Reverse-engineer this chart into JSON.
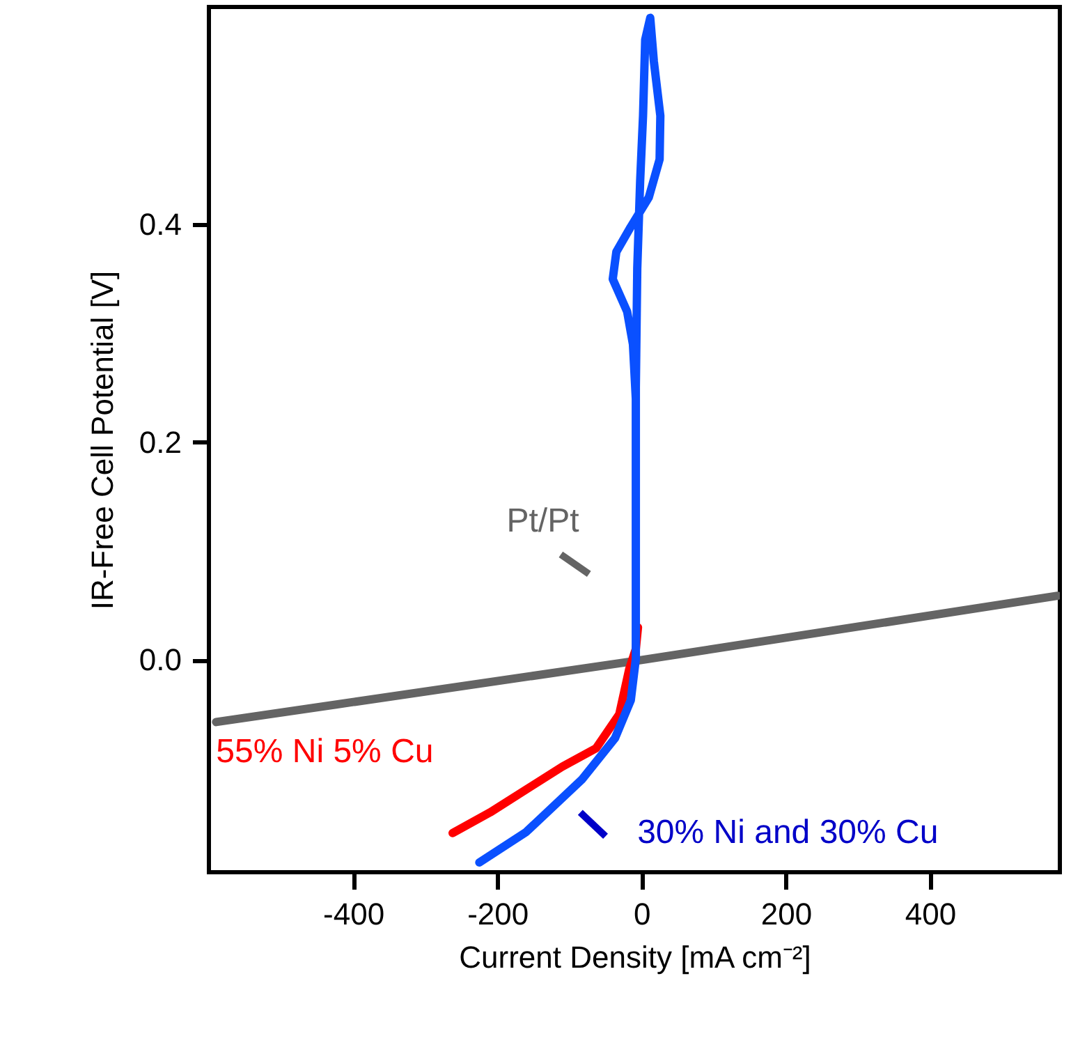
{
  "chart_data": {
    "type": "line",
    "xlabel": "Current Density [mA cm⁻²]",
    "ylabel": "IR-Free Cell Potential [V]",
    "xlim": [
      -600,
      580
    ],
    "ylim": [
      -0.195,
      0.6
    ],
    "xticks": [
      -400,
      -200,
      0,
      200,
      400
    ],
    "yticks": [
      {
        "value": 0,
        "label": "0.0"
      },
      {
        "value": 0.2,
        "label": "0.2"
      },
      {
        "value": 0.4,
        "label": "0.4"
      }
    ],
    "grid": false,
    "marker": "none",
    "line_style": "solid",
    "series": [
      {
        "name": "Pt/Pt",
        "color": "#646464",
        "x": [
          -590,
          0,
          577
        ],
        "values": [
          -0.057,
          0.0,
          0.059
        ]
      },
      {
        "name": "55% Ni 5% Cu",
        "color": "#ff0000",
        "x": [
          -262,
          -210,
          -160,
          -110,
          -63,
          -31,
          -17,
          -8,
          -5
        ],
        "values": [
          -0.159,
          -0.14,
          -0.119,
          -0.098,
          -0.081,
          -0.05,
          -0.008,
          0.01,
          0.03
        ]
      },
      {
        "name": "30% Ni and 30% Cu",
        "color": "#0a50ff",
        "x": [
          -225,
          -160,
          -83,
          -37,
          -15,
          -8,
          -8,
          -12,
          -20,
          -40,
          -35,
          -15,
          10,
          25,
          26,
          17,
          12,
          5,
          2,
          -2,
          -6,
          -8,
          -8
        ],
        "values": [
          -0.186,
          -0.158,
          -0.11,
          -0.072,
          -0.037,
          0.001,
          0.24,
          0.29,
          0.32,
          0.35,
          0.375,
          0.398,
          0.425,
          0.46,
          0.5,
          0.55,
          0.59,
          0.57,
          0.5,
          0.44,
          0.36,
          0.25,
          0.0
        ]
      }
    ]
  }
}
